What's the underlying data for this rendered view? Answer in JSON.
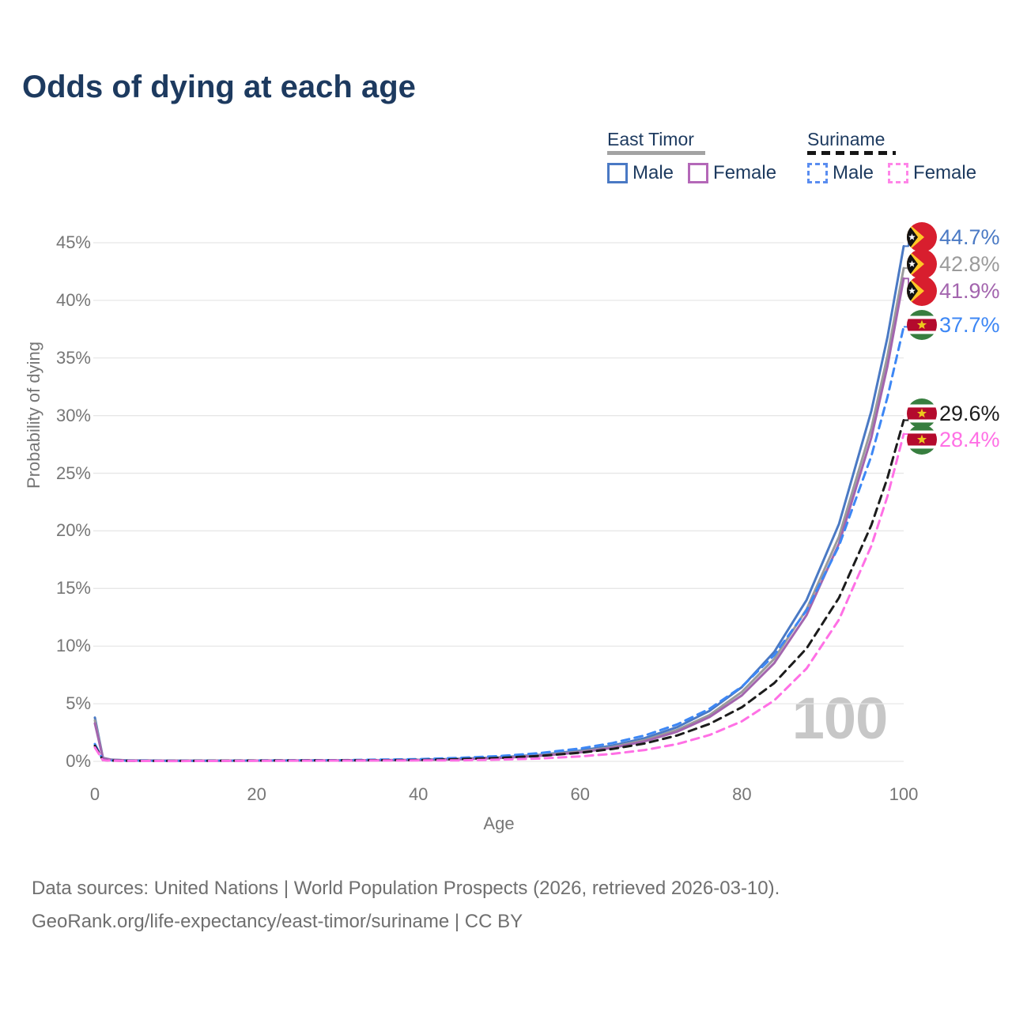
{
  "title": "Odds of dying at each age",
  "legend": {
    "east_timor": {
      "label": "East Timor",
      "male": "Male",
      "female": "Female"
    },
    "suriname": {
      "label": "Suriname",
      "male": "Male",
      "female": "Female"
    }
  },
  "watermark": "100",
  "y_axis": {
    "ticks": [
      "0%",
      "5%",
      "10%",
      "15%",
      "20%",
      "25%",
      "30%",
      "35%",
      "40%",
      "45%"
    ]
  },
  "x_axis": {
    "ticks": [
      "0",
      "20",
      "40",
      "60",
      "80",
      "100"
    ]
  },
  "footer": {
    "line1": "Data sources: United Nations | World Population Prospects (2026, retrieved 2026-03-10).",
    "line2": "GeoRank.org/life-expectancy/east-timor/suriname | CC BY"
  },
  "colors": {
    "title_navy": "#1d3a5f",
    "axis_text": "#767676",
    "grid": "#e7e7e7",
    "watermark": "#c7c7c7"
  },
  "chart_data": {
    "type": "line",
    "title": "Odds of dying at each age",
    "xlabel": "Age",
    "ylabel": "Probability of dying",
    "xlim": [
      0,
      100
    ],
    "ylim": [
      0,
      45
    ],
    "y_unit": "%",
    "grid": "horizontal",
    "legend_position": "top-right",
    "series": [
      {
        "name": "East Timor Male",
        "slug": "east-timor-male",
        "flag": "east-timor",
        "color": "#4a79c4",
        "dashed": false,
        "end_value": 44.7,
        "end_label": "44.7%",
        "points": [
          [
            0,
            3.8
          ],
          [
            1,
            0.3
          ],
          [
            2,
            0.15
          ],
          [
            4,
            0.08
          ],
          [
            10,
            0.06
          ],
          [
            20,
            0.07
          ],
          [
            30,
            0.08
          ],
          [
            40,
            0.13
          ],
          [
            45,
            0.22
          ],
          [
            50,
            0.35
          ],
          [
            55,
            0.57
          ],
          [
            60,
            0.93
          ],
          [
            64,
            1.37
          ],
          [
            68,
            2.02
          ],
          [
            72,
            2.97
          ],
          [
            76,
            4.38
          ],
          [
            80,
            6.45
          ],
          [
            84,
            9.5
          ],
          [
            88,
            14.0
          ],
          [
            92,
            20.6
          ],
          [
            96,
            30.4
          ],
          [
            98,
            36.8
          ],
          [
            100,
            44.7
          ]
        ]
      },
      {
        "name": "East Timor (both sexes)",
        "slug": "east-timor-both",
        "flag": "east-timor",
        "color": "#9b9b9b",
        "dashed": false,
        "end_value": 42.8,
        "end_label": "42.8%",
        "points": [
          [
            0,
            3.55
          ],
          [
            1,
            0.28
          ],
          [
            2,
            0.14
          ],
          [
            4,
            0.08
          ],
          [
            10,
            0.06
          ],
          [
            20,
            0.07
          ],
          [
            30,
            0.08
          ],
          [
            40,
            0.12
          ],
          [
            45,
            0.19
          ],
          [
            50,
            0.32
          ],
          [
            55,
            0.52
          ],
          [
            60,
            0.85
          ],
          [
            64,
            1.25
          ],
          [
            68,
            1.85
          ],
          [
            72,
            2.73
          ],
          [
            76,
            4.03
          ],
          [
            80,
            6.03
          ],
          [
            84,
            8.9
          ],
          [
            88,
            13.2
          ],
          [
            92,
            19.5
          ],
          [
            96,
            28.9
          ],
          [
            98,
            35.2
          ],
          [
            100,
            42.8
          ]
        ]
      },
      {
        "name": "East Timor Female",
        "slug": "east-timor-female",
        "flag": "east-timor",
        "color": "#a365ae",
        "dashed": false,
        "end_value": 41.9,
        "end_label": "41.9%",
        "points": [
          [
            0,
            3.3
          ],
          [
            1,
            0.26
          ],
          [
            2,
            0.13
          ],
          [
            4,
            0.07
          ],
          [
            10,
            0.05
          ],
          [
            20,
            0.06
          ],
          [
            30,
            0.07
          ],
          [
            40,
            0.11
          ],
          [
            45,
            0.18
          ],
          [
            50,
            0.29
          ],
          [
            55,
            0.48
          ],
          [
            60,
            0.78
          ],
          [
            64,
            1.17
          ],
          [
            68,
            1.74
          ],
          [
            72,
            2.58
          ],
          [
            76,
            3.85
          ],
          [
            80,
            5.73
          ],
          [
            84,
            8.53
          ],
          [
            88,
            12.7
          ],
          [
            92,
            18.9
          ],
          [
            96,
            28.1
          ],
          [
            98,
            34.3
          ],
          [
            100,
            41.9
          ]
        ]
      },
      {
        "name": "Suriname Male",
        "slug": "suriname-male",
        "flag": "suriname",
        "color": "#3d87f5",
        "dashed": true,
        "end_value": 37.7,
        "end_label": "37.7%",
        "points": [
          [
            0,
            1.5
          ],
          [
            1,
            0.12
          ],
          [
            2,
            0.08
          ],
          [
            4,
            0.06
          ],
          [
            10,
            0.05
          ],
          [
            20,
            0.08
          ],
          [
            30,
            0.1
          ],
          [
            40,
            0.19
          ],
          [
            45,
            0.3
          ],
          [
            50,
            0.46
          ],
          [
            55,
            0.72
          ],
          [
            60,
            1.12
          ],
          [
            64,
            1.59
          ],
          [
            68,
            2.25
          ],
          [
            72,
            3.21
          ],
          [
            76,
            4.56
          ],
          [
            80,
            6.48
          ],
          [
            84,
            9.22
          ],
          [
            88,
            13.1
          ],
          [
            92,
            18.7
          ],
          [
            96,
            26.5
          ],
          [
            98,
            31.6
          ],
          [
            100,
            37.7
          ]
        ]
      },
      {
        "name": "Suriname (both sexes)",
        "slug": "suriname-both",
        "flag": "suriname",
        "color": "#1c1c1c",
        "dashed": true,
        "end_value": 29.6,
        "end_label": "29.6%",
        "points": [
          [
            0,
            1.35
          ],
          [
            1,
            0.11
          ],
          [
            2,
            0.07
          ],
          [
            4,
            0.05
          ],
          [
            10,
            0.04
          ],
          [
            20,
            0.07
          ],
          [
            30,
            0.09
          ],
          [
            40,
            0.12
          ],
          [
            45,
            0.19
          ],
          [
            50,
            0.3
          ],
          [
            55,
            0.47
          ],
          [
            60,
            0.75
          ],
          [
            64,
            1.08
          ],
          [
            68,
            1.56
          ],
          [
            72,
            2.25
          ],
          [
            76,
            3.25
          ],
          [
            80,
            4.7
          ],
          [
            84,
            6.79
          ],
          [
            88,
            9.8
          ],
          [
            92,
            14.2
          ],
          [
            96,
            20.5
          ],
          [
            98,
            24.6
          ],
          [
            100,
            29.6
          ]
        ]
      },
      {
        "name": "Suriname Female",
        "slug": "suriname-female",
        "flag": "suriname",
        "color": "#ff70e5",
        "dashed": true,
        "end_value": 28.4,
        "end_label": "28.4%",
        "points": [
          [
            0,
            1.2
          ],
          [
            1,
            0.1
          ],
          [
            2,
            0.06
          ],
          [
            4,
            0.04
          ],
          [
            10,
            0.03
          ],
          [
            20,
            0.05
          ],
          [
            30,
            0.07
          ],
          [
            40,
            0.08
          ],
          [
            45,
            0.09
          ],
          [
            50,
            0.15
          ],
          [
            55,
            0.25
          ],
          [
            60,
            0.43
          ],
          [
            64,
            0.65
          ],
          [
            68,
            0.99
          ],
          [
            72,
            1.5
          ],
          [
            76,
            2.29
          ],
          [
            80,
            3.48
          ],
          [
            84,
            5.29
          ],
          [
            88,
            8.06
          ],
          [
            92,
            12.3
          ],
          [
            96,
            18.7
          ],
          [
            98,
            23.0
          ],
          [
            100,
            28.4
          ]
        ]
      }
    ]
  }
}
